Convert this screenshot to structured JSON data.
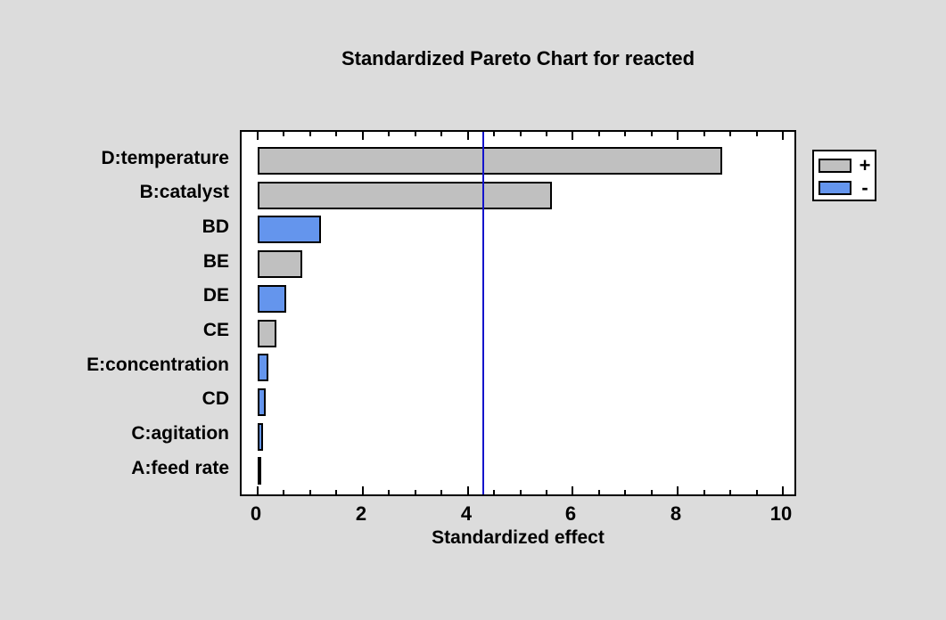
{
  "window": {
    "background_color": "#DCDCDC",
    "plot_background_color": "#FFFFFF"
  },
  "chart_data": {
    "type": "bar",
    "orientation": "horizontal",
    "title": "Standardized Pareto Chart for reacted",
    "xlabel": "Standardized effect",
    "categories": [
      "D:temperature",
      "B:catalyst",
      "BD",
      "BE",
      "DE",
      "CE",
      "E:concentration",
      "CD",
      "C:agitation",
      "A:feed rate"
    ],
    "values": [
      8.85,
      5.6,
      1.2,
      0.85,
      0.55,
      0.35,
      0.2,
      0.15,
      0.1,
      0.05
    ],
    "signs": [
      "+",
      "+",
      "-",
      "+",
      "-",
      "+",
      "-",
      "-",
      "-",
      "-"
    ],
    "xlim": [
      0,
      10
    ],
    "x_major_ticks": [
      0,
      2,
      4,
      6,
      8,
      10
    ],
    "x_minor_tick_step": 0.5,
    "grid": false,
    "reference_line": {
      "value": 4.3,
      "color": "#1414CC"
    },
    "colors": {
      "positive": "#C0C0C0",
      "negative": "#6495ED",
      "bar_border": "#000000"
    },
    "legend": {
      "position": "right",
      "entries": [
        {
          "label": "+",
          "color": "#C0C0C0",
          "meaning": "positive effect"
        },
        {
          "label": "-",
          "color": "#6495ED",
          "meaning": "negative effect"
        }
      ]
    }
  }
}
